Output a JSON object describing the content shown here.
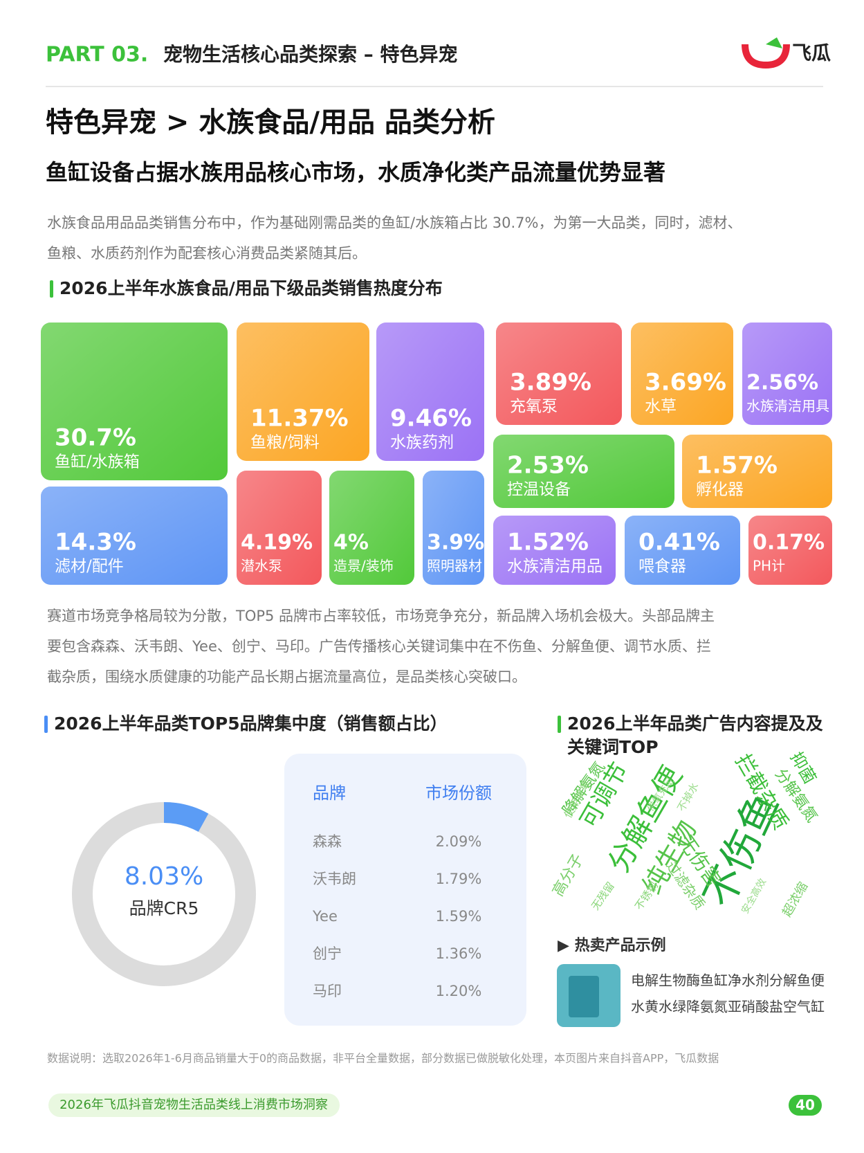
{
  "header": {
    "part": "PART 03.",
    "title": "宠物生活核心品类探索 – 特色异宠",
    "logo": "飞瓜"
  },
  "heading": "特色异宠 > 水族食品/用品 品类分析",
  "subheading": "鱼缸设备占据水族用品核心市场，水质净化类产品流量优势显著",
  "intro": [
    "水族食品用品品类销售分布中，作为基础刚需品类的鱼缸/水族箱占比 30.7%，为第一大品类，同时，滤材、",
    "鱼粮、水质药剂作为配套核心消费品类紧随其后。"
  ],
  "treemap": {
    "type": "treemap",
    "title": "2026上半年水族食品/用品下级品类销售热度分布",
    "items": [
      {
        "label": "鱼缸/水族箱",
        "value": 30.7,
        "value_label": "30.7%",
        "color": "#52c93a"
      },
      {
        "label": "鱼粮/饲料",
        "value": 11.37,
        "value_label": "11.37%",
        "color": "#fca624"
      },
      {
        "label": "水族药剂",
        "value": 9.46,
        "value_label": "9.46%",
        "color": "#9b72f5"
      },
      {
        "label": "充氧泵",
        "value": 3.89,
        "value_label": "3.89%",
        "color": "#f3585c"
      },
      {
        "label": "水草",
        "value": 3.69,
        "value_label": "3.69%",
        "color": "#fca624"
      },
      {
        "label": "水族清洁用具",
        "value": 2.56,
        "value_label": "2.56%",
        "color": "#9b72f5"
      },
      {
        "label": "滤材/配件",
        "value": 14.3,
        "value_label": "14.3%",
        "color": "#5e95f5"
      },
      {
        "label": "潜水泵",
        "value": 4.19,
        "value_label": "4.19%",
        "color": "#f3585c"
      },
      {
        "label": "造景/装饰",
        "value": 4,
        "value_label": "4%",
        "color": "#52c93a"
      },
      {
        "label": "照明器材",
        "value": 3.9,
        "value_label": "3.9%",
        "color": "#5e95f5"
      },
      {
        "label": "控温设备",
        "value": 2.53,
        "value_label": "2.53%",
        "color": "#52c93a"
      },
      {
        "label": "孵化器",
        "value": 1.57,
        "value_label": "1.57%",
        "color": "#fca624"
      },
      {
        "label": "水族清洁用品",
        "value": 1.52,
        "value_label": "1.52%",
        "color": "#9b72f5"
      },
      {
        "label": "喂食器",
        "value": 0.41,
        "value_label": "0.41%",
        "color": "#5e95f5"
      },
      {
        "label": "PH计",
        "value": 0.17,
        "value_label": "0.17%",
        "color": "#f3585c"
      }
    ]
  },
  "analysis": [
    "赛道市场竞争格局较为分散，TOP5 品牌市占率较低，市场竞争充分，新品牌入场机会极大。头部品牌主",
    "要包含森森、沃韦朗、Yee、创宁、马印。广告传播核心关键词集中在不伤鱼、分解鱼便、调节水质、拦",
    "截杂质，围绕水质健康的功能产品长期占据流量高位，是品类核心突破口。"
  ],
  "concentration": {
    "title": "2026上半年品类TOP5品牌集中度（销售额占比）",
    "donut": {
      "type": "donut",
      "value": 8.03,
      "value_label": "8.03%",
      "caption": "品牌CR5",
      "color": "#5b9cf5",
      "track_color": "#dcdcdc"
    },
    "table": {
      "header": [
        "品牌",
        "市场份额"
      ],
      "rows": [
        [
          "森森",
          "2.09%"
        ],
        [
          "沃韦朗",
          "1.79%"
        ],
        [
          "Yee",
          "1.59%"
        ],
        [
          "创宁",
          "1.36%"
        ],
        [
          "马印",
          "1.20%"
        ]
      ]
    }
  },
  "keywords": {
    "title": [
      "2026上半年品类广告内容提及及",
      "关键词TOP"
    ],
    "words": [
      "不伤鱼",
      "分解鱼便",
      "纯生物",
      "可调节",
      "拦截杂质",
      "无伤害",
      "过滤杂质",
      "降解氨氮",
      "分解氨氮",
      "抑菌",
      "高分子",
      "超浓缩",
      "使用简单",
      "不锈钢",
      "无残留",
      "安全高效",
      "不掉水",
      "供氧充足"
    ],
    "hot_title": "▶ 热卖产品示例",
    "product": [
      "电解生物酶鱼缸净水剂分解鱼便",
      "水黄水绿降氨氮亚硝酸盐空气缸"
    ]
  },
  "footer": {
    "note": "数据说明：选取2026年1-6月商品销量大于0的商品数据，非平台全量数据，部分数据已做脱敏化处理，本页图片来自抖音APP，飞瓜数据",
    "report": "2026年飞瓜抖音宠物生活品类线上消费市场洞察",
    "page": "40"
  }
}
